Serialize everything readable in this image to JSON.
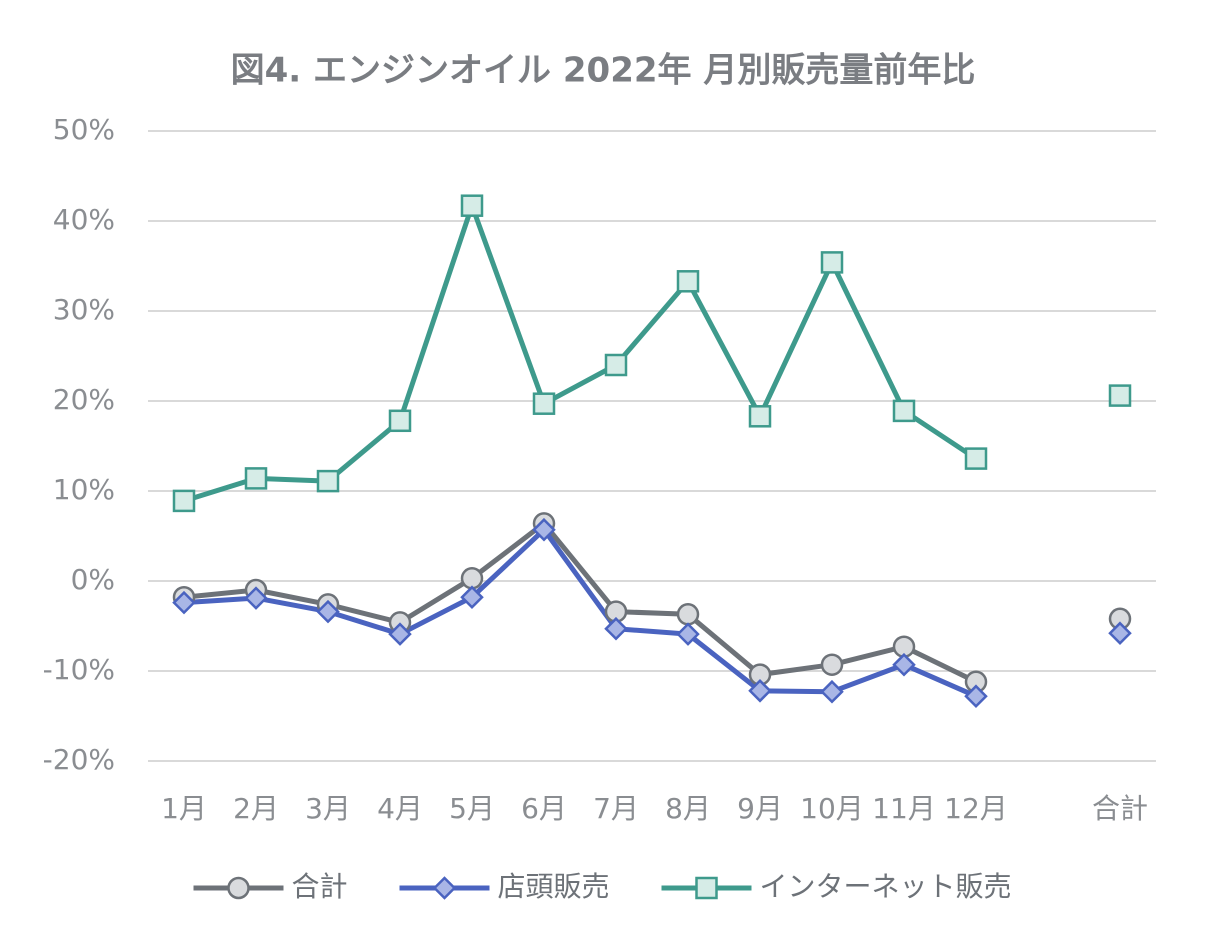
{
  "chart_data": {
    "type": "line",
    "title": "図4. エンジンオイル 2022年 月別販売量前年比",
    "categories": [
      "1月",
      "2月",
      "3月",
      "4月",
      "5月",
      "6月",
      "7月",
      "8月",
      "9月",
      "10月",
      "11月",
      "12月",
      null,
      "合計"
    ],
    "series": [
      {
        "name": "合計",
        "color": "#6d7278",
        "marker": "circle",
        "marker_fill": "#d9dbde",
        "values": [
          -1.8,
          -1.0,
          -2.6,
          -4.6,
          0.3,
          6.4,
          -3.4,
          -3.7,
          -10.4,
          -9.3,
          -7.3,
          -11.2,
          null,
          -4.2
        ]
      },
      {
        "name": "店頭販売",
        "color": "#4a63c0",
        "marker": "diamond",
        "marker_fill": "#a9b6e6",
        "values": [
          -2.4,
          -1.9,
          -3.4,
          -5.9,
          -1.8,
          5.7,
          -5.3,
          -5.9,
          -12.2,
          -12.3,
          -9.3,
          -12.8,
          null,
          -5.8
        ]
      },
      {
        "name": "インターネット販売",
        "color": "#3e9a8c",
        "marker": "square",
        "marker_fill": "#d6ece7",
        "values": [
          8.9,
          11.4,
          11.1,
          17.8,
          41.7,
          19.7,
          24.0,
          33.3,
          18.3,
          35.4,
          18.9,
          13.6,
          null,
          20.6
        ]
      }
    ],
    "ylim": [
      -20,
      50
    ],
    "yticks": [
      {
        "value": -20,
        "label": "-20%"
      },
      {
        "value": -10,
        "label": "-10%"
      },
      {
        "value": 0,
        "label": "0%"
      },
      {
        "value": 10,
        "label": "10%"
      },
      {
        "value": 20,
        "label": "20%"
      },
      {
        "value": 30,
        "label": "30%"
      },
      {
        "value": 40,
        "label": "40%"
      },
      {
        "value": 50,
        "label": "50%"
      }
    ],
    "grid": true,
    "legend": "bottom"
  }
}
